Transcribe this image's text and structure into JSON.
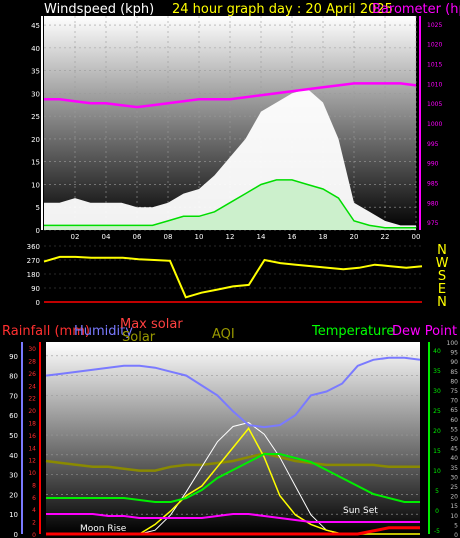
{
  "title": "24 hour graph day : 20 April 2025",
  "colors": {
    "wind": "#ffffff",
    "gust_fill": "#c8f0c8",
    "gust_line": "#00dd00",
    "baro": "#ff00ff",
    "dir": "#ffff00",
    "humidity": "#7a7aff",
    "maxsolar": "#ffffff",
    "solar": "#ffff00",
    "temperature": "#00ee00",
    "dewpoint": "#ff00ff",
    "rain": "#ff0000",
    "aqi": "#8a8a00",
    "maroon": "#a00030"
  },
  "chart_data": [
    {
      "type": "line",
      "id": "wind_baro",
      "title_left": "Windspeed (kph)",
      "title_right": "Barometer (hpa)",
      "x_ticks": [
        "02",
        "04",
        "06",
        "08",
        "10",
        "12",
        "14",
        "16",
        "18",
        "20",
        "22",
        "00"
      ],
      "y_left_ticks": [
        "0",
        "5",
        "10",
        "15",
        "20",
        "25",
        "30",
        "35",
        "40",
        "45"
      ],
      "y_left_range": [
        0,
        47
      ],
      "y_right_ticks": [
        "975",
        "980",
        "985",
        "990",
        "995",
        "1000",
        "1005",
        "1010",
        "1015",
        "1020",
        "1025"
      ],
      "y_right_range": [
        973,
        1027
      ],
      "hours": [
        0,
        1,
        2,
        3,
        4,
        5,
        6,
        7,
        8,
        9,
        10,
        11,
        12,
        13,
        14,
        15,
        16,
        17,
        18,
        19,
        20,
        21,
        22,
        23,
        24
      ],
      "wind_speed": [
        1,
        1,
        1,
        1,
        1,
        1,
        1,
        1,
        2,
        3,
        3,
        4,
        6,
        8,
        10,
        11,
        11,
        10,
        9,
        7,
        2,
        1,
        0.5,
        0.5,
        0.5
      ],
      "wind_gust": [
        6,
        6,
        7,
        6,
        6,
        6,
        5,
        5,
        6,
        8,
        9,
        12,
        16,
        20,
        26,
        28,
        30,
        31,
        28,
        20,
        6,
        4,
        2,
        1,
        1
      ],
      "barometer": [
        1006,
        1006,
        1005.5,
        1005,
        1005,
        1004.5,
        1004,
        1004.5,
        1005,
        1005.5,
        1006,
        1006,
        1006,
        1006.5,
        1007,
        1007.5,
        1008,
        1008.5,
        1009,
        1009.5,
        1010,
        1010,
        1010,
        1010,
        1009.5
      ]
    },
    {
      "type": "line",
      "id": "wind_direction",
      "y_ticks": [
        "360",
        "270",
        "180",
        "90",
        "0"
      ],
      "y_range": [
        0,
        360
      ],
      "compass": [
        "N",
        "W",
        "S",
        "E",
        "N"
      ],
      "hours": [
        0,
        1,
        2,
        3,
        4,
        5,
        6,
        7,
        8,
        9,
        10,
        11,
        12,
        13,
        14,
        15,
        16,
        17,
        18,
        19,
        20,
        21,
        22,
        23,
        24
      ],
      "direction": [
        260,
        290,
        290,
        285,
        285,
        285,
        275,
        270,
        265,
        30,
        60,
        80,
        100,
        110,
        270,
        250,
        240,
        230,
        220,
        210,
        220,
        240,
        230,
        220,
        230
      ]
    },
    {
      "type": "line",
      "id": "temp_hum_solar",
      "labels": {
        "rain": "Rainfall (mm)",
        "humidity": "Humidity",
        "maxsolar": "Max solar",
        "solar": "Solar",
        "aqi": "AQI",
        "temperature": "Temperature",
        "dewpoint": "Dew Point",
        "moonrise": "Moon Rise",
        "sunset": "Sun Set"
      },
      "humidity_ticks": [
        "0",
        "10",
        "20",
        "30",
        "40",
        "50",
        "60",
        "70",
        "80",
        "90"
      ],
      "rain_ticks": [
        "0",
        "2",
        "4",
        "6",
        "8",
        "10",
        "12",
        "14",
        "16",
        "18",
        "20",
        "22",
        "24",
        "26",
        "28",
        "30"
      ],
      "temp_ticks": [
        "-5",
        "0",
        "5",
        "10",
        "15",
        "20",
        "25",
        "30",
        "35",
        "40"
      ],
      "solar_ticks": [
        "0",
        "5",
        "10",
        "15",
        "20",
        "25",
        "30",
        "35",
        "40",
        "45",
        "50",
        "55",
        "60",
        "65",
        "70",
        "75",
        "80",
        "85",
        "90",
        "95",
        "100"
      ],
      "hours": [
        0,
        1,
        2,
        3,
        4,
        5,
        6,
        7,
        8,
        9,
        10,
        11,
        12,
        13,
        14,
        15,
        16,
        17,
        18,
        19,
        20,
        21,
        22,
        23,
        24
      ],
      "humidity": [
        80,
        81,
        82,
        83,
        84,
        85,
        85,
        84,
        82,
        80,
        75,
        70,
        62,
        55,
        54,
        55,
        60,
        70,
        72,
        76,
        85,
        88,
        89,
        89,
        88
      ],
      "temperature": [
        3,
        3,
        3,
        3,
        3,
        3,
        2.5,
        2,
        2,
        3,
        5,
        8,
        10,
        12,
        14,
        14,
        13,
        12,
        10,
        8,
        6,
        4,
        3,
        2,
        2
      ],
      "dewpoint": [
        -1,
        -1,
        -1,
        -1,
        -1.5,
        -1.5,
        -2,
        -2,
        -2,
        -2,
        -2,
        -1.5,
        -1,
        -1,
        -1.5,
        -2,
        -2.5,
        -3,
        -3,
        -3,
        -3,
        -3,
        -3,
        -3,
        -3
      ],
      "solar": [
        0,
        0,
        0,
        0,
        0,
        0,
        0,
        5,
        12,
        20,
        25,
        35,
        45,
        55,
        40,
        20,
        10,
        5,
        2,
        0,
        0,
        0,
        0,
        0,
        0
      ],
      "max_solar": [
        0,
        0,
        0,
        0,
        0,
        0,
        0,
        2,
        10,
        22,
        35,
        48,
        56,
        58,
        52,
        40,
        25,
        10,
        2,
        0,
        0,
        0,
        0,
        0,
        0
      ],
      "aqi": [
        38,
        37,
        36,
        35,
        35,
        34,
        33,
        33,
        35,
        36,
        36,
        37,
        38,
        40,
        42,
        40,
        38,
        37,
        36,
        36,
        36,
        36,
        35,
        35,
        35
      ],
      "rain_total": [
        0,
        0,
        0,
        0,
        0,
        0,
        0,
        0,
        0,
        0,
        0,
        0,
        0,
        0,
        0,
        0,
        0,
        0,
        0,
        0,
        0,
        0.5,
        1,
        1,
        1
      ]
    }
  ]
}
